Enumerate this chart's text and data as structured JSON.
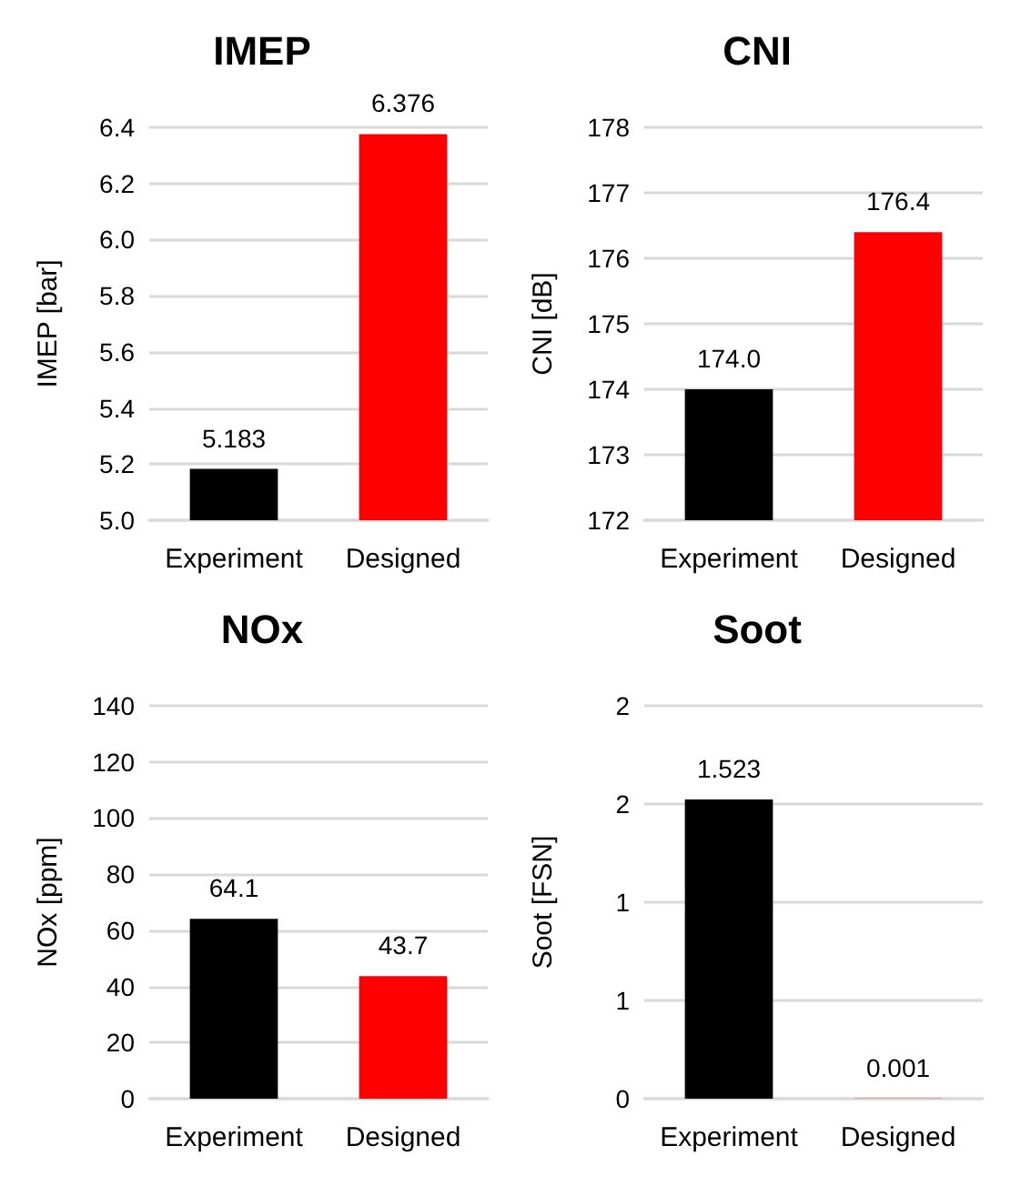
{
  "chart_data": [
    {
      "type": "bar",
      "title": "IMEP",
      "ylabel": "IMEP [bar]",
      "categories": [
        "Experiment",
        "Designed"
      ],
      "values": [
        5.183,
        6.376
      ],
      "colors": [
        "#000000",
        "#ff0000"
      ],
      "ylim": [
        5.0,
        6.4
      ],
      "yticks": [
        {
          "value": 5.0,
          "label": "5.0"
        },
        {
          "value": 5.2,
          "label": "5.2"
        },
        {
          "value": 5.4,
          "label": "5.4"
        },
        {
          "value": 5.6,
          "label": "5.6"
        },
        {
          "value": 5.8,
          "label": "5.8"
        },
        {
          "value": 6.0,
          "label": "6.0"
        },
        {
          "value": 6.2,
          "label": "6.2"
        },
        {
          "value": 6.4,
          "label": "6.4"
        }
      ],
      "grid": "y",
      "data_labels": true
    },
    {
      "type": "bar",
      "title": "CNI",
      "ylabel": "CNI [dB]",
      "categories": [
        "Experiment",
        "Designed"
      ],
      "values": [
        174.0,
        176.4
      ],
      "value_labels": [
        "174.0",
        "176.4"
      ],
      "colors": [
        "#000000",
        "#ff0000"
      ],
      "ylim": [
        172,
        178
      ],
      "yticks": [
        172,
        173,
        174,
        175,
        176,
        177,
        178
      ],
      "grid": "y"
    },
    {
      "type": "bar",
      "title": "NOx",
      "ylabel": "NOx [ppm]",
      "categories": [
        "Experiment",
        "Designed"
      ],
      "values": [
        64.1,
        43.7
      ],
      "colors": [
        "#000000",
        "#ff0000"
      ],
      "ylim": [
        0,
        140
      ],
      "yticks": [
        0,
        20,
        40,
        60,
        80,
        100,
        120,
        140
      ],
      "grid": "y",
      "data_labels": true
    },
    {
      "type": "bar",
      "title": "Soot",
      "ylabel": "Soot [FSN]",
      "categories": [
        "Experiment",
        "Designed"
      ],
      "values": [
        1.523,
        0.001
      ],
      "colors": [
        "#000000",
        "#ff0000"
      ],
      "ylim": [
        0,
        2
      ],
      "yticks": [
        0,
        {
          "value": 0.5,
          "label": "1"
        },
        1,
        {
          "value": 1.5,
          "label": "2"
        },
        2
      ],
      "grid": "y",
      "data_labels": true
    }
  ]
}
